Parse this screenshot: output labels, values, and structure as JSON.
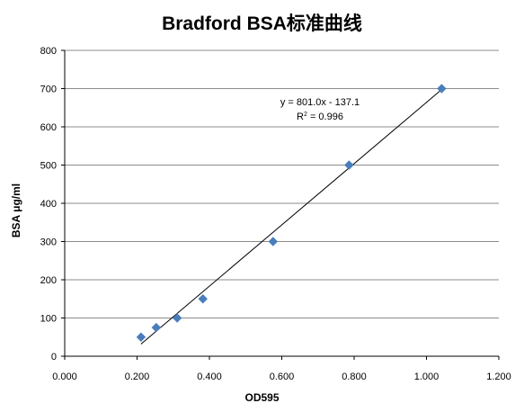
{
  "chart_data": {
    "type": "scatter",
    "title": "Bradford BSA标准曲线",
    "xlabel": "OD595",
    "ylabel": "BSA μg/ml",
    "xlim": [
      0,
      1.2
    ],
    "ylim": [
      0,
      800
    ],
    "x_ticks": [
      "0.000",
      "0.200",
      "0.400",
      "0.600",
      "0.800",
      "1.000",
      "1.200"
    ],
    "y_ticks": [
      "0",
      "100",
      "200",
      "300",
      "400",
      "500",
      "600",
      "700",
      "800"
    ],
    "grid": "horizontal",
    "series": [
      {
        "points": [
          {
            "x": 0.211,
            "y": 50
          },
          {
            "x": 0.253,
            "y": 75
          },
          {
            "x": 0.311,
            "y": 100
          },
          {
            "x": 0.382,
            "y": 150
          },
          {
            "x": 0.576,
            "y": 300
          },
          {
            "x": 0.786,
            "y": 500
          },
          {
            "x": 1.042,
            "y": 700
          }
        ],
        "color": "#4a7ebb",
        "marker": "diamond"
      }
    ],
    "trendline": {
      "slope": 801.0,
      "intercept": -137.1,
      "x_range": [
        0.211,
        1.042
      ],
      "equation": "y = 801.0x - 137.1",
      "r2_prefix": "R",
      "r2_sup": "2",
      "r2_value": " = 0.996"
    }
  }
}
